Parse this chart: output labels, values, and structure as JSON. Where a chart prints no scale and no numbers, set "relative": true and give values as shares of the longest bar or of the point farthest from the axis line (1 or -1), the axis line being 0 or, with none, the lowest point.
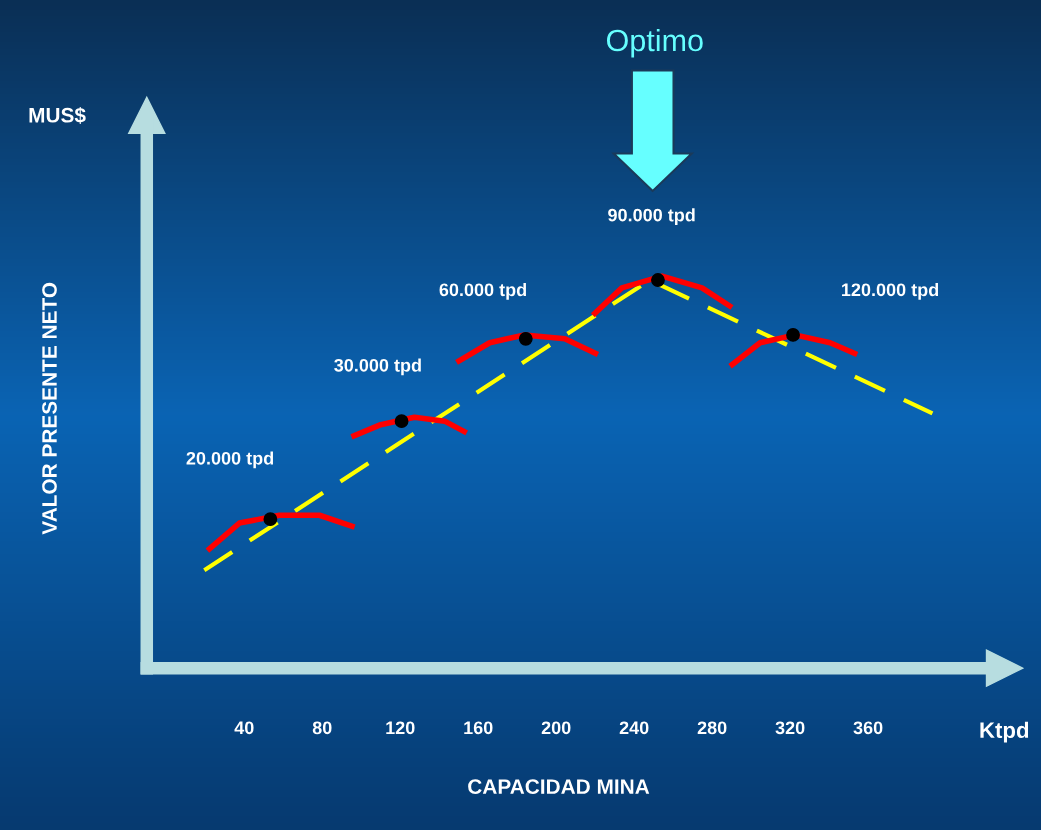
{
  "chart_data": {
    "type": "line",
    "relative": true,
    "xlabel": "CAPACIDAD MINA",
    "ylabel": "VALOR PRESENTE NETO",
    "xlim": [
      -10,
      430
    ],
    "xticks": [
      40,
      80,
      120,
      160,
      200,
      240,
      280,
      320,
      360
    ],
    "tick_labels": "x",
    "annotations": [
      "20.000 tpd",
      "30.000 tpd",
      "60.000 tpd",
      "90.000 tpd",
      "120.000 tpd",
      "Optimo",
      "MUS$",
      "Ktpd"
    ],
    "series": [
      {
        "color": "#ffff00",
        "line_style": "dashed",
        "x": [
          19.5,
          248,
          393
        ],
        "values": [
          0.25,
          0.99,
          0.65
        ]
      },
      {
        "color": "#ff0000",
        "line_style": "solid",
        "x": [
          21.1,
          37.5,
          58.0,
          78.6,
          96.6
        ],
        "values": [
          0.3,
          0.37,
          0.39,
          0.39,
          0.36
        ]
      },
      {
        "color": "#ff0000",
        "line_style": "solid",
        "x": [
          95.0,
          109.4,
          127.3,
          142.8,
          154.1
        ],
        "values": [
          0.59,
          0.62,
          0.64,
          0.63,
          0.6
        ]
      },
      {
        "color": "#ff0000",
        "line_style": "solid",
        "x": [
          148.9,
          165.9,
          183.8,
          204.4,
          221.4
        ],
        "values": [
          0.78,
          0.83,
          0.85,
          0.84,
          0.8
        ]
      },
      {
        "color": "#ff0000",
        "line_style": "solid",
        "x": [
          218.8,
          233.7,
          254.3,
          274.8,
          290.2
        ],
        "values": [
          0.9,
          0.97,
          1.0,
          0.97,
          0.92
        ]
      },
      {
        "color": "#ff0000",
        "line_style": "solid",
        "x": [
          289.2,
          304.6,
          322.5,
          340.5,
          354.4
        ],
        "values": [
          0.77,
          0.83,
          0.85,
          0.83,
          0.8
        ]
      },
      {
        "type": "scatter",
        "color": "#000000",
        "marker": "circle",
        "x": [
          53.4,
          120.7,
          184.4,
          252.2,
          321.5
        ],
        "values": [
          0.38,
          0.63,
          0.84,
          0.99,
          0.85
        ]
      }
    ]
  }
}
